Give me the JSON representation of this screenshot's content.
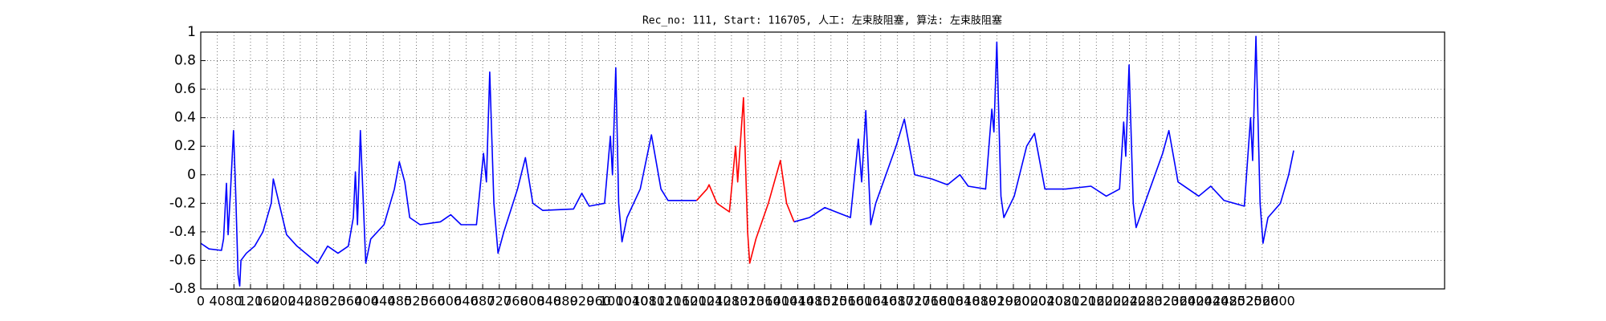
{
  "chart_data": {
    "type": "line",
    "title": "Rec_no: 111, Start: 116705, 人工: 左束肢阻塞, 算法: 左束肢阻塞",
    "xlim": [
      0,
      3000
    ],
    "ylim": [
      -0.8,
      1.0
    ],
    "xticks": [
      0,
      40,
      80,
      120,
      160,
      200,
      240,
      280,
      320,
      360,
      400,
      440,
      480,
      520,
      560,
      600,
      640,
      680,
      720,
      760,
      800,
      840,
      880,
      920,
      960,
      1000,
      1040,
      1080,
      1120,
      1160,
      1200,
      1240,
      1280,
      1320,
      1360,
      1400,
      1440,
      1480,
      1520,
      1560,
      1600,
      1640,
      1680,
      1720,
      1760,
      1800,
      1840,
      1880,
      1920,
      1960,
      2000,
      2040,
      2080,
      2120,
      2160,
      2200,
      2240,
      2280,
      2320,
      2360,
      2400,
      2440,
      2480,
      2520,
      2560,
      2600
    ],
    "yticks": [
      -0.8,
      -0.6,
      -0.4,
      -0.2,
      0.0,
      0.2,
      0.4,
      0.6,
      0.8,
      1.0
    ],
    "grid": true,
    "series": [
      {
        "color": "#0000ff",
        "x": [
          0,
          20,
          50,
          55,
          62,
          66,
          72,
          79,
          84,
          90,
          94,
          97,
          110,
          130,
          150,
          170,
          175,
          207,
          232,
          282,
          306,
          331,
          356,
          368,
          373,
          378,
          385,
          398,
          410,
          442,
          467,
          479,
          492,
          504,
          529,
          578,
          603,
          628,
          665,
          682,
          689,
          697,
          707,
          717,
          731,
          764,
          783,
          801,
          825,
          899,
          919,
          937,
          974,
          988,
          993,
          1001,
          1008,
          1016,
          1028,
          1060,
          1087,
          1110,
          1127,
          1196
        ],
        "values": [
          -0.48,
          -0.52,
          -0.53,
          -0.45,
          -0.06,
          -0.42,
          -0.1,
          0.31,
          -0.1,
          -0.7,
          -0.78,
          -0.6,
          -0.55,
          -0.5,
          -0.4,
          -0.2,
          -0.03,
          -0.42,
          -0.5,
          -0.62,
          -0.5,
          -0.55,
          -0.5,
          -0.3,
          0.02,
          -0.35,
          0.31,
          -0.62,
          -0.45,
          -0.35,
          -0.1,
          0.09,
          -0.05,
          -0.3,
          -0.35,
          -0.33,
          -0.28,
          -0.35,
          -0.35,
          0.15,
          -0.05,
          0.72,
          -0.2,
          -0.55,
          -0.4,
          -0.1,
          0.12,
          -0.2,
          -0.25,
          -0.24,
          -0.13,
          -0.22,
          -0.2,
          0.27,
          0.0,
          0.75,
          -0.2,
          -0.47,
          -0.3,
          -0.1,
          0.28,
          -0.1,
          -0.18,
          -0.18
        ]
      },
      {
        "color": "#ff0000",
        "x": [
          1196,
          1221,
          1226,
          1245,
          1275,
          1290,
          1295,
          1309,
          1319,
          1324,
          1339,
          1369,
          1398,
          1413,
          1431
        ],
        "values": [
          -0.18,
          -0.1,
          -0.07,
          -0.2,
          -0.26,
          0.2,
          -0.05,
          0.54,
          -0.4,
          -0.62,
          -0.45,
          -0.2,
          0.1,
          -0.2,
          -0.33
        ]
      },
      {
        "color": "#0000ff",
        "x": [
          1431,
          1468,
          1505,
          1567,
          1586,
          1594,
          1604,
          1616,
          1628,
          1677,
          1697,
          1722,
          1764,
          1801,
          1831,
          1851,
          1893,
          1908,
          1913,
          1920,
          1930,
          1937,
          1962,
          1992,
          2011,
          2036,
          2086,
          2147,
          2184,
          2216,
          2226,
          2231,
          2239,
          2249,
          2256,
          2283,
          2320,
          2335,
          2357,
          2407,
          2436,
          2468,
          2517,
          2532,
          2537,
          2545,
          2555,
          2562,
          2574,
          2604,
          2624,
          2636
        ],
        "values": [
          -0.33,
          -0.3,
          -0.23,
          -0.3,
          0.25,
          -0.05,
          0.45,
          -0.35,
          -0.2,
          0.2,
          0.39,
          0.0,
          -0.03,
          -0.07,
          0.0,
          -0.08,
          -0.1,
          0.46,
          0.3,
          0.93,
          -0.15,
          -0.3,
          -0.15,
          0.2,
          0.29,
          -0.1,
          -0.1,
          -0.08,
          -0.15,
          -0.1,
          0.37,
          0.13,
          0.77,
          -0.2,
          -0.37,
          -0.15,
          0.15,
          0.31,
          -0.05,
          -0.15,
          -0.08,
          -0.18,
          -0.22,
          0.4,
          0.1,
          0.97,
          -0.2,
          -0.48,
          -0.3,
          -0.2,
          0.0,
          0.17
        ]
      }
    ]
  }
}
